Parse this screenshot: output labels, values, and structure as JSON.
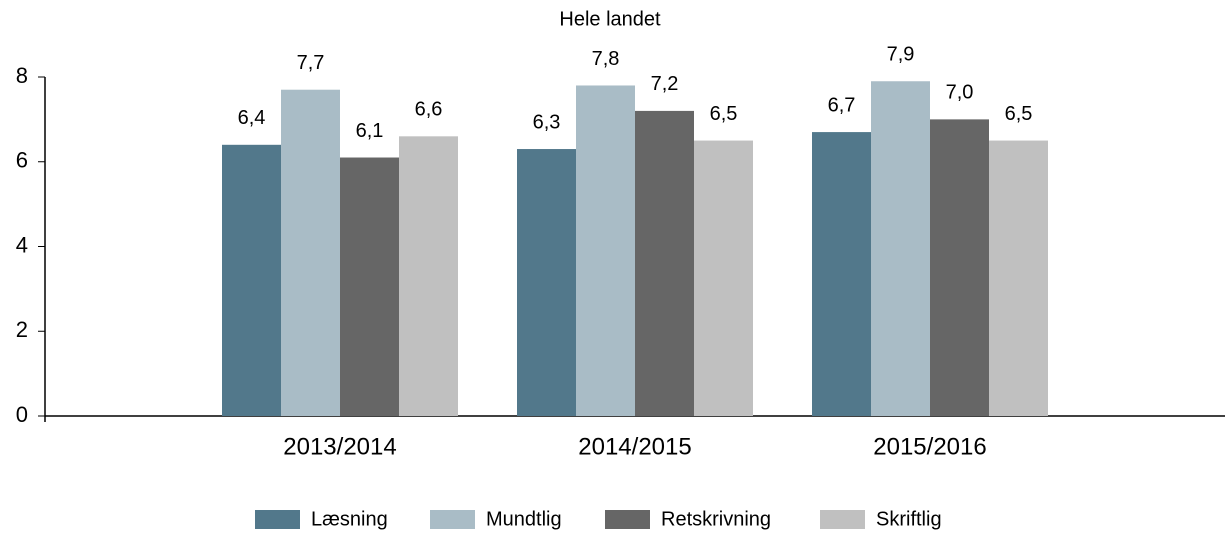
{
  "chart_data": {
    "type": "bar",
    "title": "Hele landet",
    "categories": [
      "2013/2014",
      "2014/2015",
      "2015/2016"
    ],
    "series": [
      {
        "name": "Læsning",
        "color": "#52788b",
        "values": [
          6.4,
          6.3,
          6.7
        ],
        "value_labels": [
          "6,4",
          "6,3",
          "6,7"
        ]
      },
      {
        "name": "Mundtlig",
        "color": "#a9bcc6",
        "values": [
          7.7,
          7.8,
          7.9
        ],
        "value_labels": [
          "7,7",
          "7,8",
          "7,9"
        ]
      },
      {
        "name": "Retskrivning",
        "color": "#666666",
        "values": [
          6.1,
          7.2,
          7.0
        ],
        "value_labels": [
          "6,1",
          "7,2",
          "7,0"
        ]
      },
      {
        "name": "Skriftlig",
        "color": "#c0c0c0",
        "values": [
          6.6,
          6.5,
          6.5
        ],
        "value_labels": [
          "6,6",
          "6,5",
          "6,5"
        ]
      }
    ],
    "ylim": [
      0,
      8
    ],
    "yticks": [
      0,
      2,
      4,
      6,
      8
    ],
    "legend": "bottom"
  }
}
